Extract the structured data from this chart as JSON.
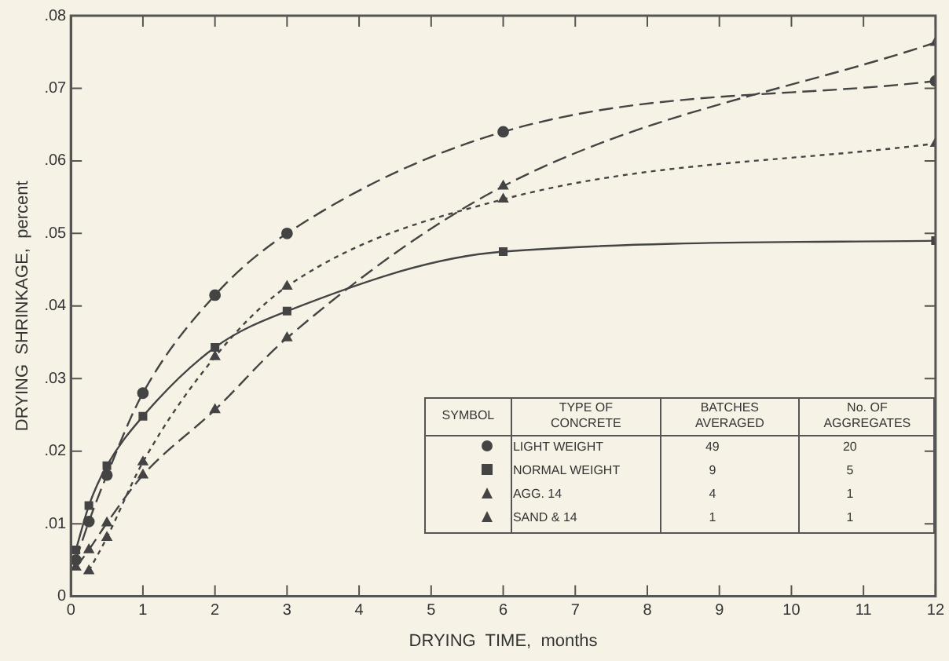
{
  "chart_data": {
    "type": "line",
    "xlabel": "DRYING  TIME,  months",
    "ylabel": "DRYING  SHRINKAGE,  percent",
    "xlim": [
      0,
      12
    ],
    "xticks": [
      0,
      1,
      2,
      3,
      4,
      5,
      6,
      7,
      8,
      9,
      10,
      11,
      12
    ],
    "ylim": [
      0,
      0.08
    ],
    "yticks": [
      0,
      {
        "value": 0.01,
        "label": ".01"
      },
      {
        "value": 0.02,
        "label": ".02"
      },
      {
        "value": 0.03,
        "label": ".03"
      },
      {
        "value": 0.04,
        "label": ".04"
      },
      {
        "value": 0.05,
        "label": ".05"
      },
      {
        "value": 0.06,
        "label": ".06"
      },
      {
        "value": 0.07,
        "label": ".07"
      },
      {
        "value": 0.08,
        "label": ".08"
      }
    ],
    "grid": false,
    "legend": "bottom right",
    "annotations": [
      "SYMBOL",
      "TYPE OF CONCRETE",
      "BATCHES AVERAGED",
      "No. OF AGGREGATES",
      "49",
      "20",
      "9",
      "5",
      "4",
      "1",
      "1",
      "1"
    ],
    "series": [
      {
        "name": "LIGHT WEIGHT",
        "color": "#444444",
        "marker": "circle",
        "line_style": "dashed",
        "x": [
          0.07,
          0.25,
          0.5,
          1,
          2,
          3,
          6,
          12
        ],
        "values": [
          0.005,
          0.0103,
          0.0167,
          0.028,
          0.0415,
          0.05,
          0.064,
          0.071
        ]
      },
      {
        "name": "NORMAL WEIGHT",
        "color": "#444444",
        "marker": "square",
        "line_style": "solid",
        "x": [
          0.07,
          0.25,
          0.5,
          1,
          2,
          3,
          6,
          12
        ],
        "values": [
          0.0064,
          0.0125,
          0.018,
          0.0248,
          0.0343,
          0.0393,
          0.0475,
          0.049
        ]
      },
      {
        "name": "AGG. 14",
        "color": "#444444",
        "marker": "triangle",
        "line_style": "dashed",
        "x": [
          0.07,
          0.25,
          0.5,
          1,
          2,
          3,
          6,
          12
        ],
        "values": [
          0.004,
          0.0064,
          0.0101,
          0.0167,
          0.0257,
          0.0356,
          0.0565,
          0.0763
        ]
      },
      {
        "name": "SAND & 14",
        "color": "#444444",
        "marker": "triangle",
        "line_style": "dotted",
        "x": [
          0.25,
          0.5,
          1,
          2,
          3,
          6,
          12
        ],
        "values": [
          0.0035,
          0.0081,
          0.0185,
          0.033,
          0.0427,
          0.0547,
          0.0624
        ]
      }
    ]
  }
}
